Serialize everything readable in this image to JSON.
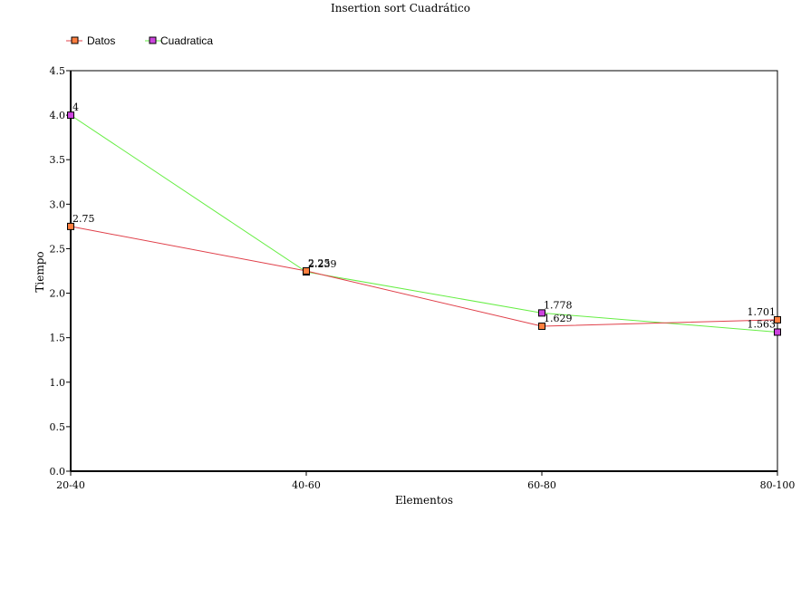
{
  "chart_data": {
    "type": "line",
    "title": "Insertion sort Cuadrático",
    "xlabel": "Elementos",
    "ylabel": "Tiempo",
    "categories": [
      "20-40",
      "40-60",
      "60-80",
      "80-100"
    ],
    "ylim": [
      0,
      4.5
    ],
    "yticks": [
      "0.0",
      "0.5",
      "1.0",
      "1.5",
      "2.0",
      "2.5",
      "3.0",
      "3.5",
      "4.0",
      "4.5"
    ],
    "grid": false,
    "legend_position": "top-left",
    "series": [
      {
        "name": "Datos",
        "values": [
          2.75,
          2.25,
          1.629,
          1.701
        ],
        "labels": [
          "2.75",
          "2.25",
          "1.629",
          "1.701"
        ],
        "line_color": "#e0404a",
        "marker_color": "#ff7f3f"
      },
      {
        "name": "Cuadratica",
        "values": [
          4,
          2.239,
          1.778,
          1.563
        ],
        "labels": [
          "4",
          "2.239",
          "1.778",
          "1.563"
        ],
        "line_color": "#66ee44",
        "marker_color": "#cc44dd"
      }
    ]
  }
}
